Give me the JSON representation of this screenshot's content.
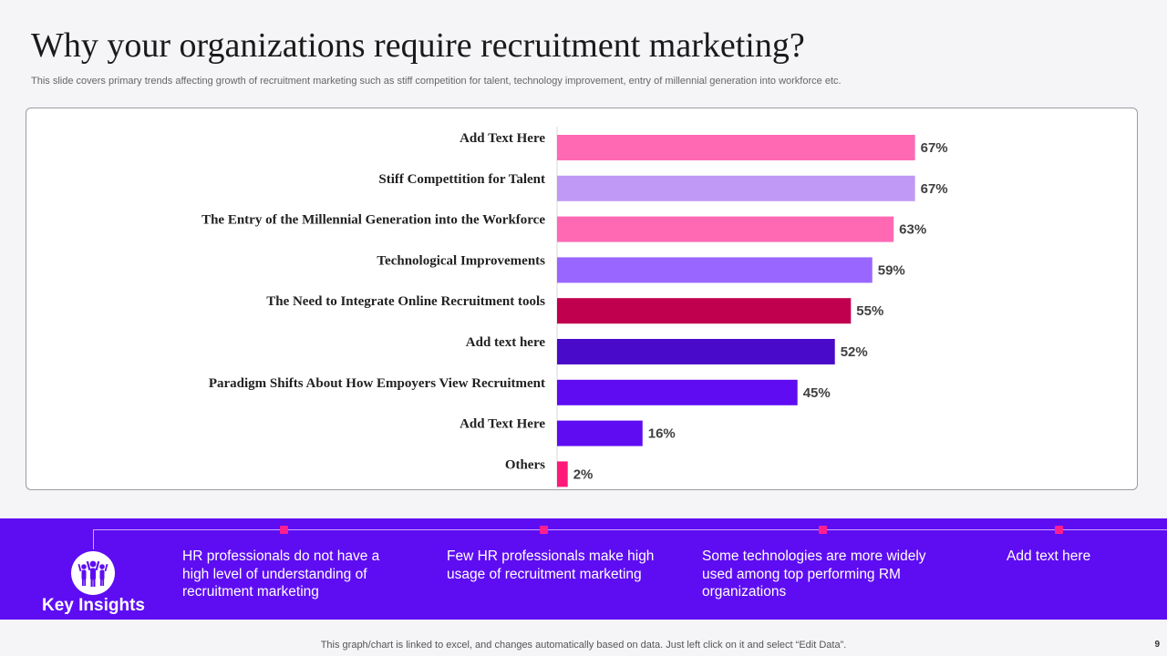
{
  "header": {
    "title": "Why your organizations require recruitment marketing?",
    "subtitle": "This slide covers primary trends affecting growth of recruitment marketing such as stiff competition for talent, technology improvement, entry of millennial generation into workforce etc."
  },
  "chart_data": {
    "type": "bar",
    "orientation": "horizontal",
    "categories": [
      "Add Text Here",
      "Stiff Compettition for Talent",
      "The Entry of the Millennial Generation into the Workforce",
      "Technological Improvements",
      "The Need to Integrate Online Recruitment tools",
      "Add text here",
      "Paradigm Shifts About How Empoyers View Recruitment",
      "Add Text Here",
      "Others"
    ],
    "values": [
      67,
      67,
      63,
      59,
      55,
      52,
      45,
      16,
      2
    ],
    "value_labels": [
      "67%",
      "67%",
      "63%",
      "59%",
      "55%",
      "52%",
      "45%",
      "16%",
      "2%"
    ],
    "colors": [
      "#ff69b4",
      "#bf99f5",
      "#ff69b4",
      "#9966ff",
      "#c0004e",
      "#4a0ac9",
      "#5f0cf2",
      "#5f0cf2",
      "#ff1a7a"
    ],
    "xlim": [
      0,
      100
    ],
    "title": "",
    "xlabel": "",
    "ylabel": ""
  },
  "insights": {
    "label": "Key Insights",
    "items": [
      "HR professionals do not have a high level of understanding of recruitment marketing",
      "Few HR professionals make high usage of recruitment marketing",
      "Some technologies are more widely used among top performing RM organizations",
      "Add text here"
    ]
  },
  "footer": {
    "note": "This graph/chart is linked to excel,  and changes automatically based on data. Just left click on it and select “Edit Data”.",
    "page_number": "9"
  }
}
